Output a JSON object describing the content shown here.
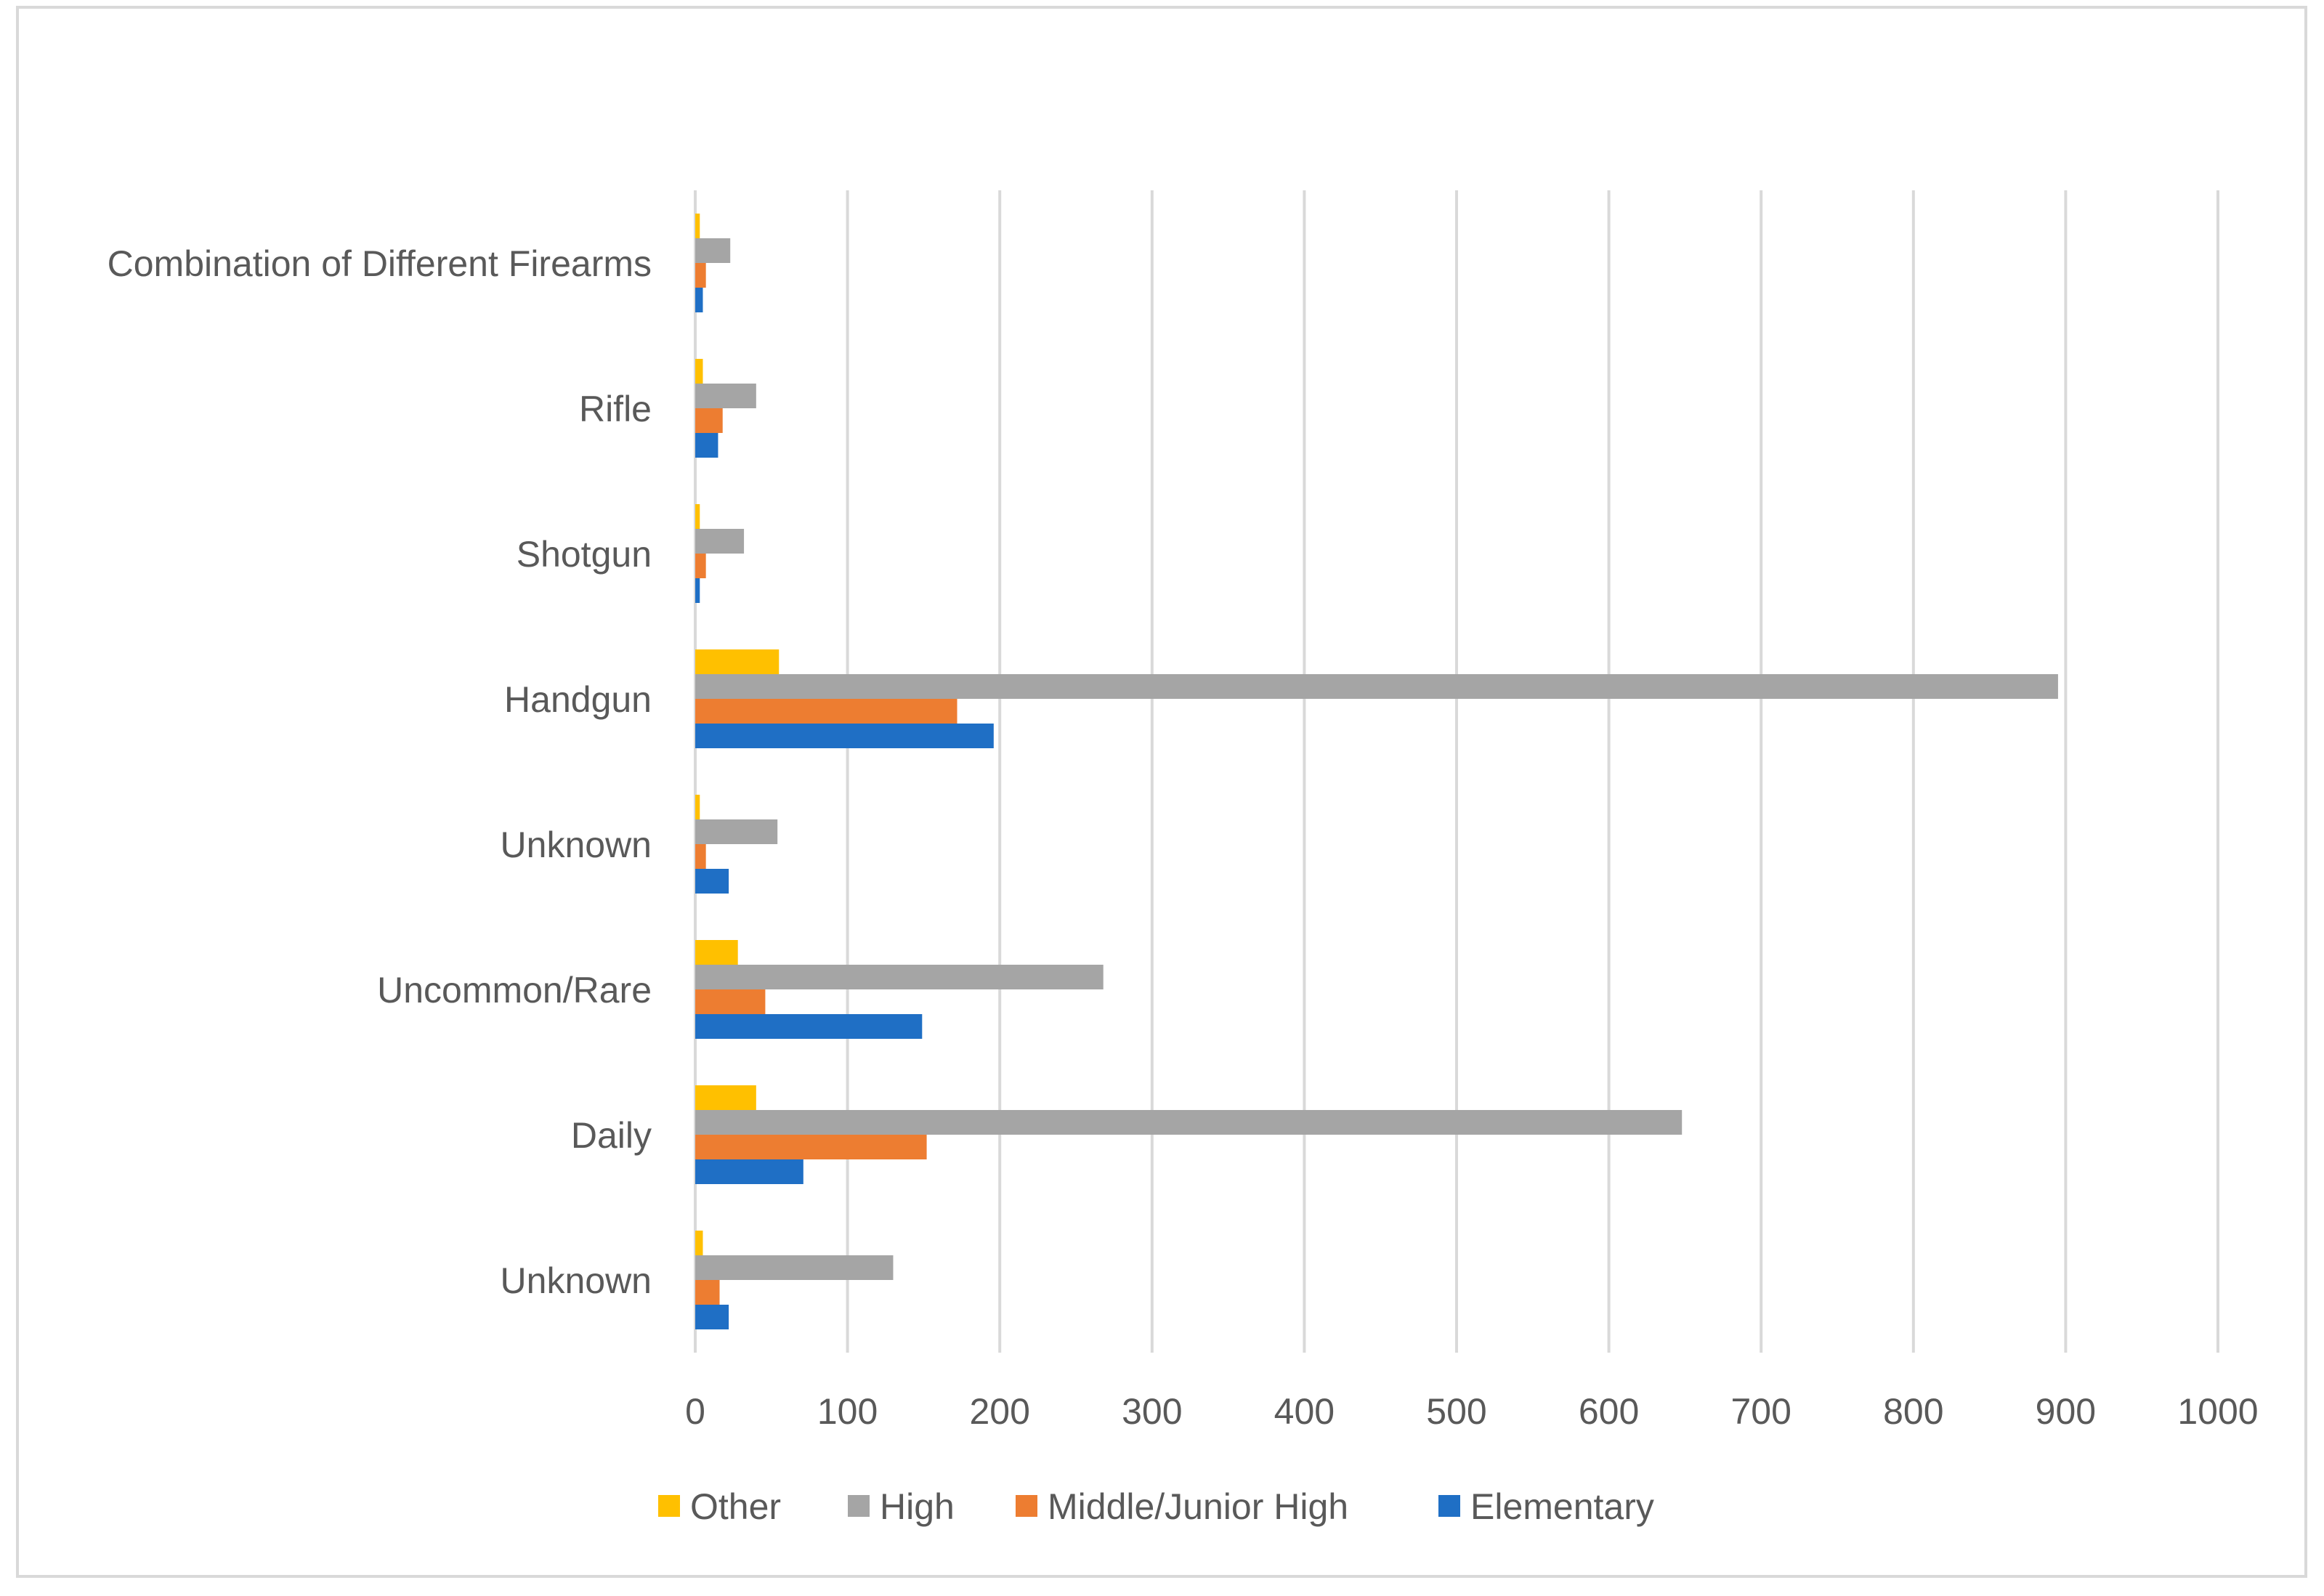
{
  "chart_data": {
    "type": "bar",
    "orientation": "horizontal",
    "categories": [
      "Combination of Different Firearms",
      "Rifle",
      "Shotgun",
      "Handgun",
      "Unknown",
      "Uncommon/Rare",
      "Daily",
      "Unknown"
    ],
    "series": [
      {
        "name": "Other",
        "color": "#FFC000",
        "values": [
          3,
          5,
          3,
          55,
          3,
          28,
          40,
          5
        ]
      },
      {
        "name": "High",
        "color": "#A5A5A5",
        "values": [
          23,
          40,
          32,
          895,
          54,
          268,
          648,
          130
        ]
      },
      {
        "name": "Middle/Junior High",
        "color": "#ED7D31",
        "values": [
          7,
          18,
          7,
          172,
          7,
          46,
          152,
          16
        ]
      },
      {
        "name": "Elementary",
        "color": "#1F6FC5",
        "values": [
          5,
          15,
          3,
          196,
          22,
          149,
          71,
          22
        ]
      }
    ],
    "xlim": [
      0,
      1000
    ],
    "xticks": [
      "0",
      "100",
      "200",
      "300",
      "400",
      "500",
      "600",
      "700",
      "800",
      "900",
      "1000"
    ],
    "grid": true,
    "legend_position": "bottom"
  }
}
